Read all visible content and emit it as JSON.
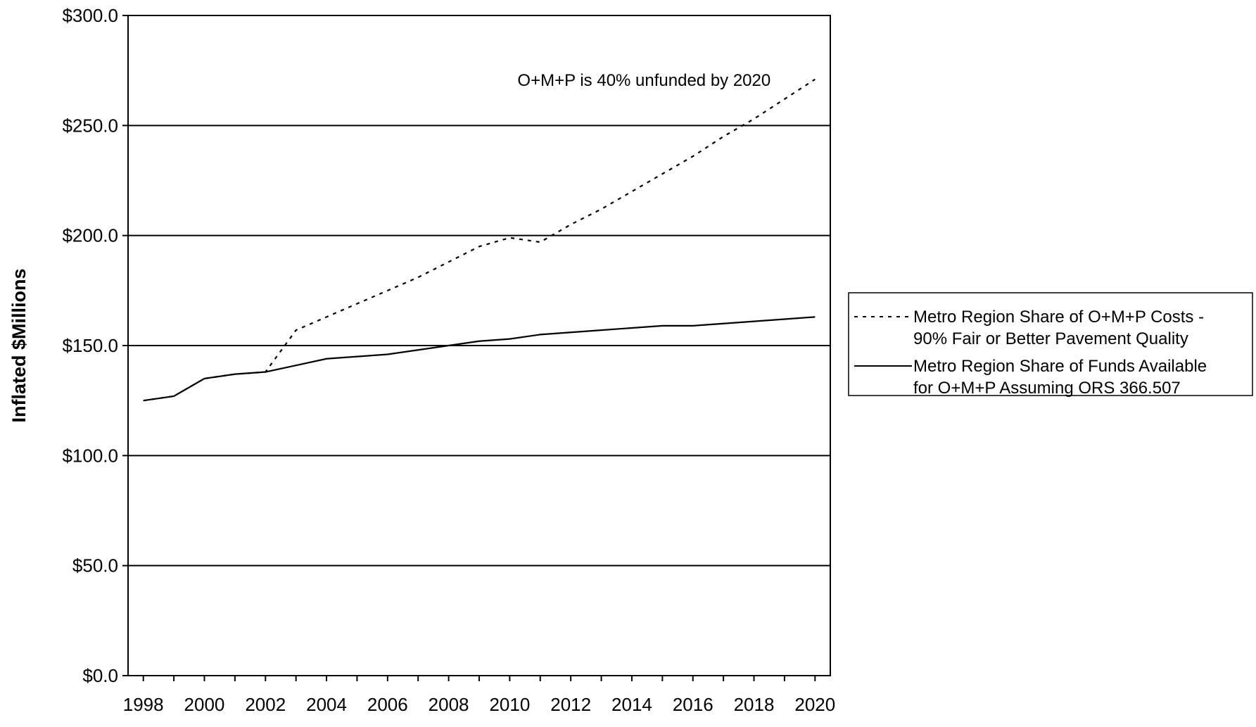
{
  "chart_data": {
    "type": "line",
    "title": "",
    "xlabel": "",
    "ylabel": "Inflated $Millions",
    "xlim": [
      1997.5,
      2020.5
    ],
    "ylim": [
      0,
      300
    ],
    "x_ticks": [
      1998,
      2000,
      2002,
      2004,
      2006,
      2008,
      2010,
      2012,
      2014,
      2016,
      2018,
      2020
    ],
    "y_ticks": [
      0,
      50,
      100,
      150,
      200,
      250,
      300
    ],
    "y_tick_labels": [
      "$0.0",
      "$50.0",
      "$100.0",
      "$150.0",
      "$200.0",
      "$250.0",
      "$300.0"
    ],
    "grid": "horizontal",
    "legend_position": "right",
    "x": [
      1998,
      1999,
      2000,
      2001,
      2002,
      2003,
      2004,
      2005,
      2006,
      2007,
      2008,
      2009,
      2010,
      2011,
      2012,
      2013,
      2014,
      2015,
      2016,
      2017,
      2018,
      2019,
      2020
    ],
    "series": [
      {
        "name": "Metro Region Share of O+M+P Costs - 90% Fair or Better Pavement Quality",
        "line_style": "dotted",
        "values": [
          125,
          127,
          135,
          137,
          138,
          157,
          163,
          169,
          175,
          181,
          188,
          195,
          199,
          197,
          205,
          212,
          220,
          228,
          236,
          245,
          253,
          262,
          271
        ]
      },
      {
        "name": "Metro Region Share of Funds Available for O+M+P Assuming ORS 366.507",
        "line_style": "solid",
        "values": [
          125,
          127,
          135,
          137,
          138,
          141,
          144,
          145,
          146,
          148,
          150,
          152,
          153,
          155,
          156,
          157,
          158,
          159,
          159,
          160,
          161,
          162,
          163
        ]
      }
    ],
    "annotations": [
      {
        "text": "O+M+P is 40% unfunded by 2020",
        "x": 2014.4,
        "y": 268
      }
    ],
    "legend": [
      {
        "lines": [
          "Metro Region Share of O+M+P Costs -",
          "90% Fair or Better Pavement Quality"
        ],
        "line_style": "dotted"
      },
      {
        "lines": [
          "Metro Region Share of Funds Available",
          "for O+M+P Assuming ORS 366.507"
        ],
        "line_style": "solid"
      }
    ],
    "colors": {
      "line": "#000000",
      "background": "#ffffff"
    }
  }
}
